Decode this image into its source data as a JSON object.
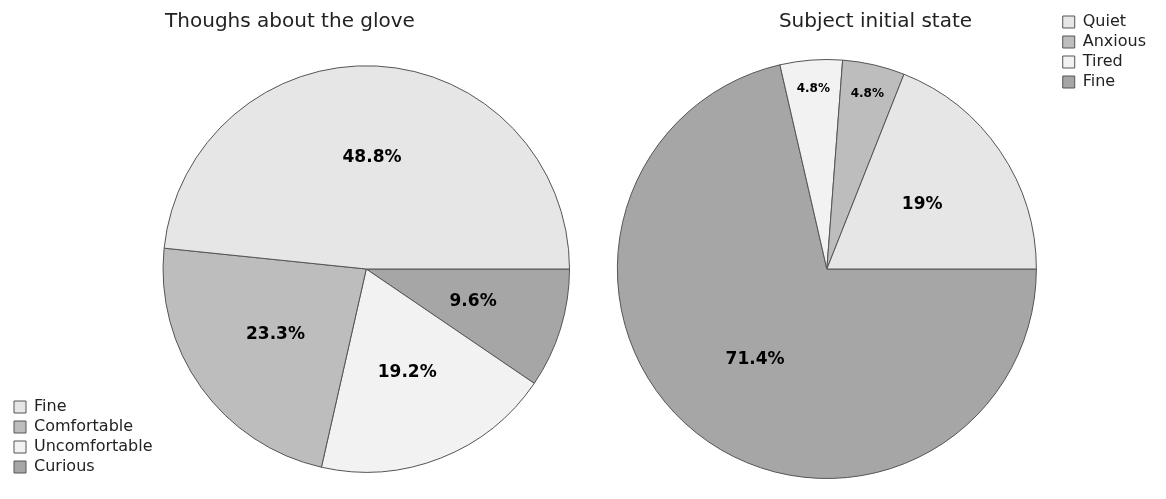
{
  "chart_data": [
    {
      "type": "pie",
      "title": "Thoughs about the glove",
      "categories": [
        "Fine",
        "Comfortable",
        "Uncomfortable",
        "Curious"
      ],
      "values": [
        48.8,
        23.3,
        19.2,
        9.6
      ],
      "value_labels": [
        "48.8%",
        "23.3%",
        "19.2%",
        "9.6%"
      ],
      "colors": [
        "#e6e6e6",
        "#bdbdbd",
        "#f2f2f2",
        "#a6a6a6"
      ],
      "legend": "bottom left"
    },
    {
      "type": "pie",
      "title": "Subject initial state",
      "categories": [
        "Quiet",
        "Anxious",
        "Tired",
        "Fine"
      ],
      "values": [
        19,
        4.8,
        4.8,
        71.4
      ],
      "value_labels": [
        "19%",
        "4.8%",
        "4.8%",
        "71.4%"
      ],
      "colors": [
        "#e6e6e6",
        "#bdbdbd",
        "#f2f2f2",
        "#a6a6a6"
      ],
      "legend": "top right"
    }
  ]
}
